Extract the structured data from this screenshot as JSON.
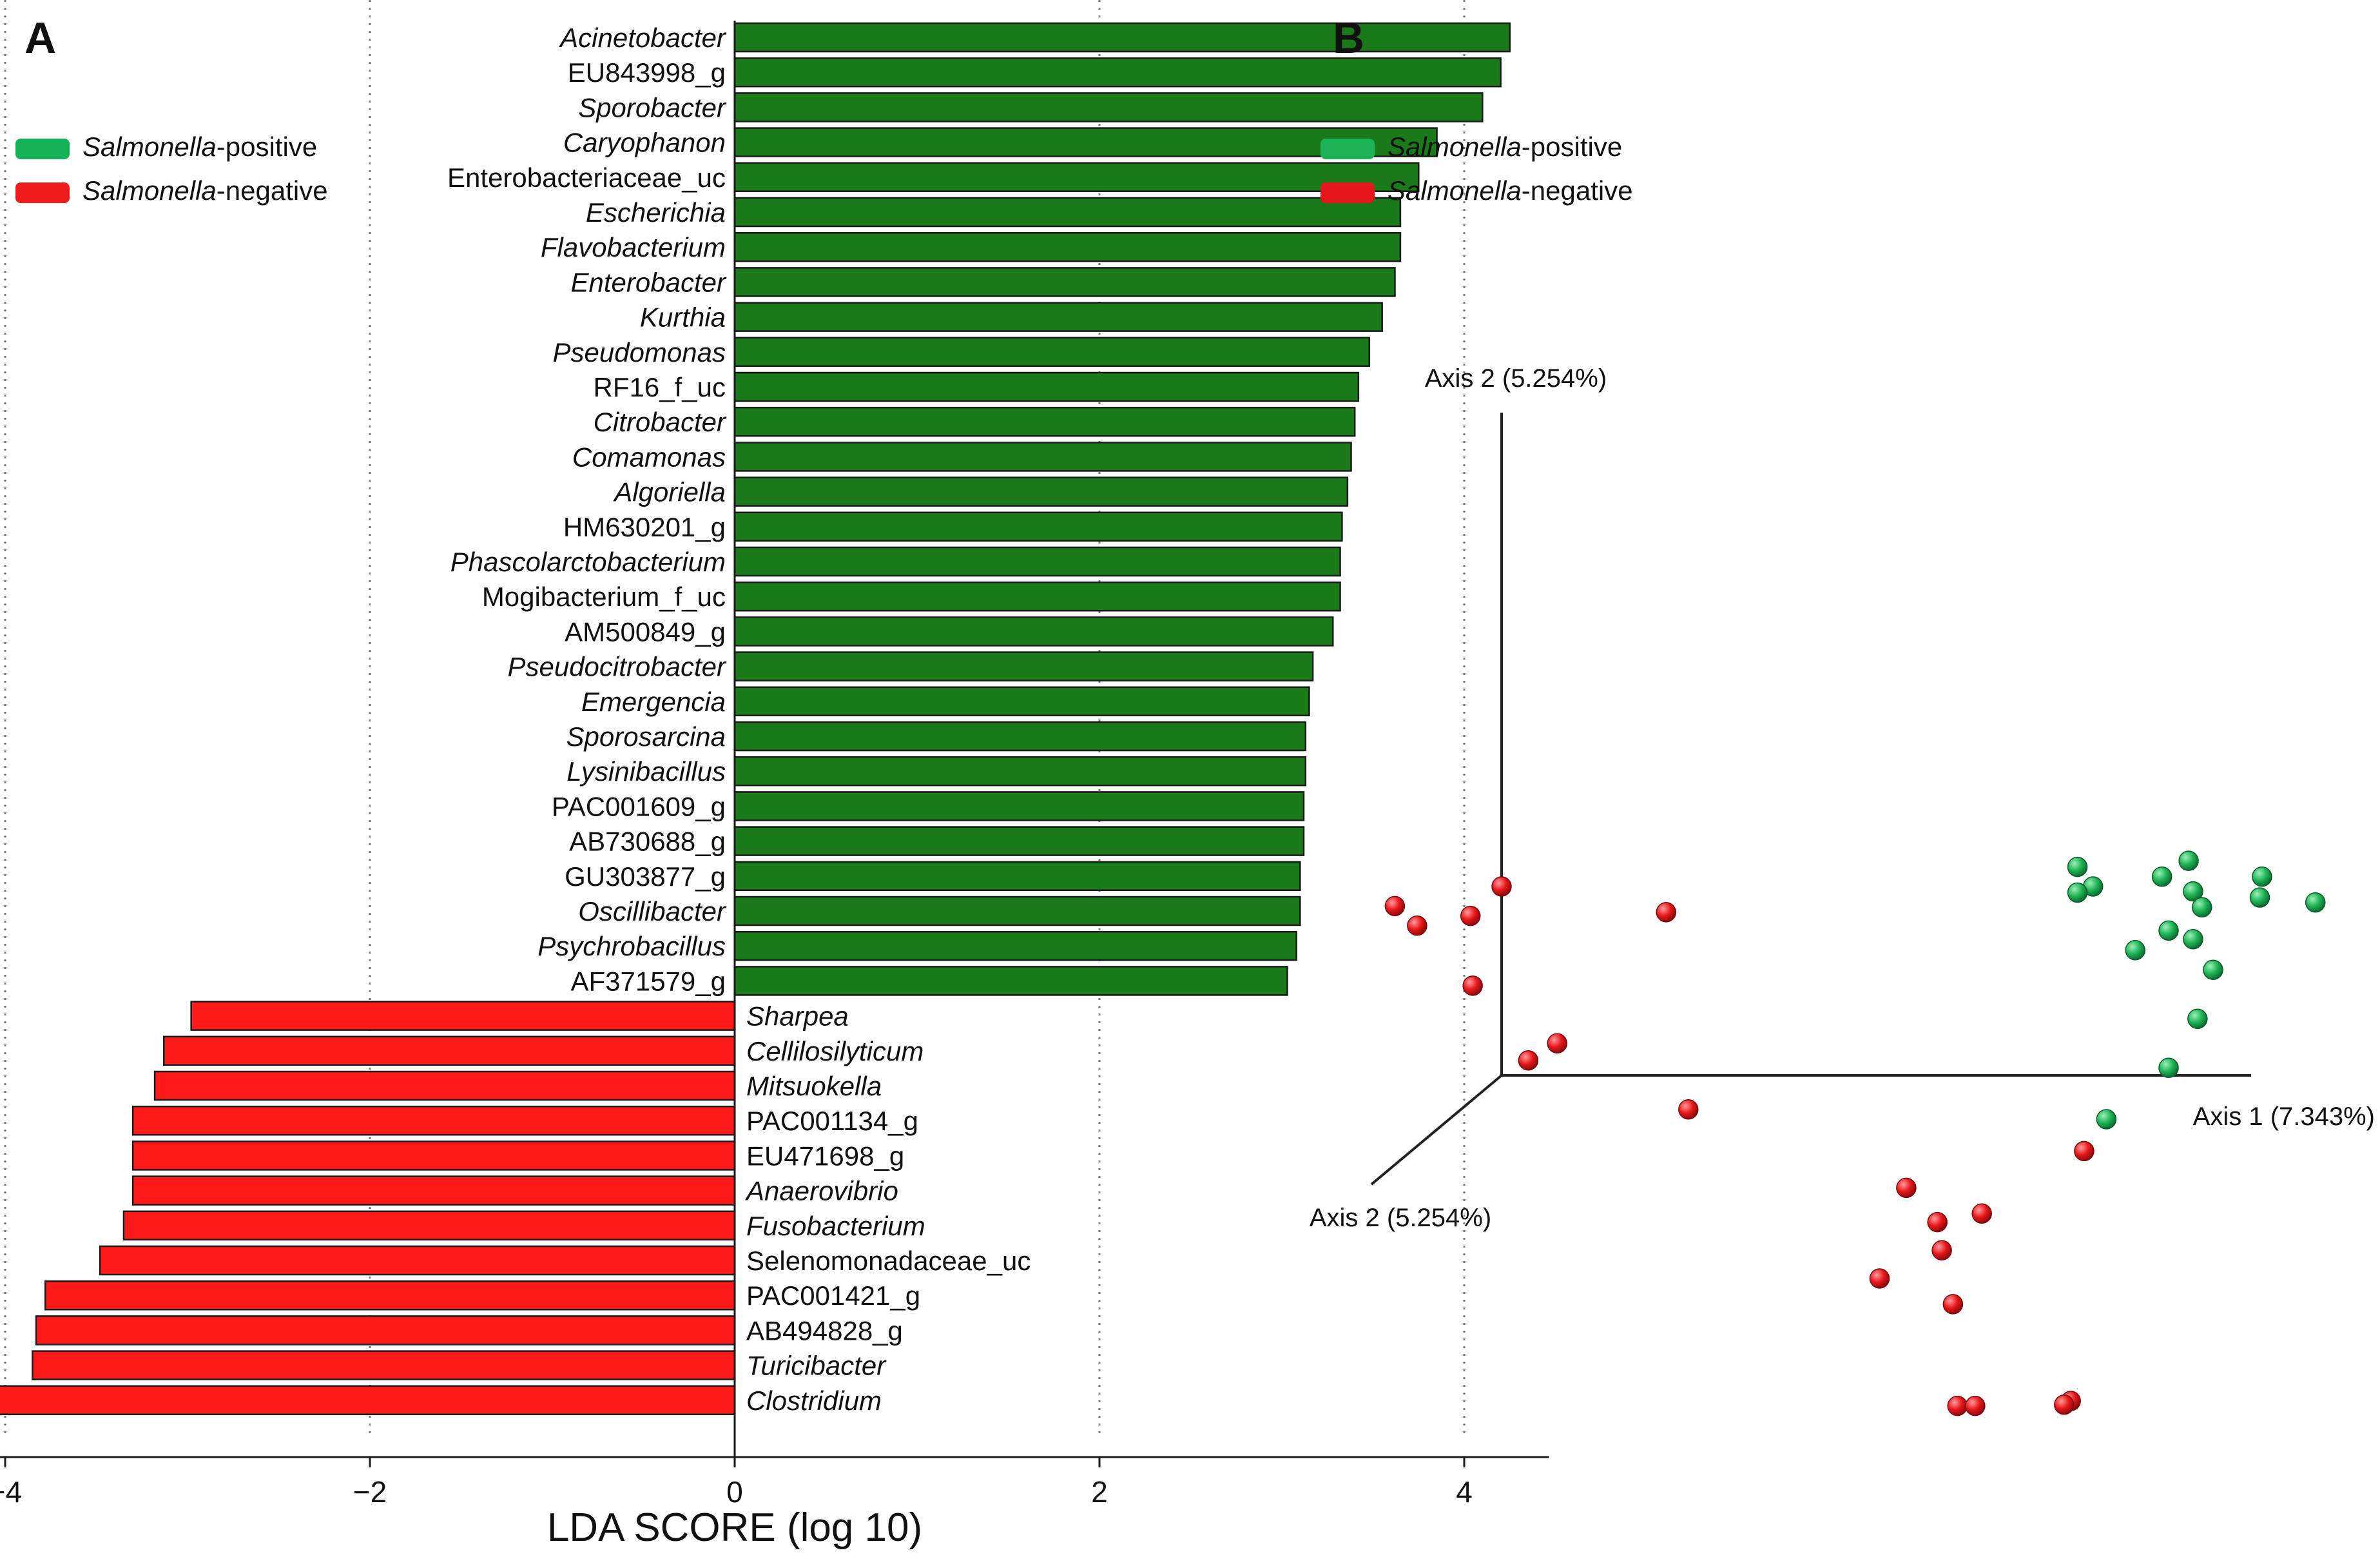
{
  "panel_a": {
    "panel_label": "A",
    "legend": {
      "positive_prefix": "Salmonella",
      "positive_suffix": "-positive",
      "negative_prefix": "Salmonella",
      "negative_suffix": "-negative"
    },
    "colors": {
      "positive": "#1a7a1a",
      "negative": "#ff1a1a",
      "legend_positive": "#14b257",
      "legend_negative": "#ee1c1c"
    }
  },
  "panel_b": {
    "panel_label": "B",
    "legend": {
      "positive_prefix": "Salmonella",
      "positive_suffix": "-positive",
      "negative_prefix": "Salmonella",
      "negative_suffix": "-negative"
    },
    "axis_labels": {
      "axis2_top": "Axis 2 (5.254%)",
      "axis1_right": "Axis 1 (7.343%)",
      "axis2_depth": "Axis 2 (5.254%)"
    },
    "colors": {
      "positive": "#1db356",
      "negative": "#e6161a"
    }
  },
  "chart_data": [
    {
      "type": "bar",
      "orientation": "horizontal",
      "xlabel": "LDA SCORE (log 10)",
      "xlim": [
        -4.5,
        4.5
      ],
      "xticks": [
        -4,
        -2,
        0,
        2,
        4
      ],
      "xtick_labels": [
        "−4",
        "−2",
        "0",
        "2",
        "4"
      ],
      "grid": "vertical dotted lines at -4, -2, 2, 4",
      "legend": "top-left",
      "bars": [
        {
          "label": "Acinetobacter",
          "value": 4.25,
          "group": "positive",
          "italic": true
        },
        {
          "label": "EU843998_g",
          "value": 4.2,
          "group": "positive",
          "italic": false
        },
        {
          "label": "Sporobacter",
          "value": 4.1,
          "group": "positive",
          "italic": true
        },
        {
          "label": "Caryophanon",
          "value": 3.85,
          "group": "positive",
          "italic": true
        },
        {
          "label": "Enterobacteriaceae_uc",
          "value": 3.75,
          "group": "positive",
          "italic": false
        },
        {
          "label": "Escherichia",
          "value": 3.65,
          "group": "positive",
          "italic": true
        },
        {
          "label": "Flavobacterium",
          "value": 3.65,
          "group": "positive",
          "italic": true
        },
        {
          "label": "Enterobacter",
          "value": 3.62,
          "group": "positive",
          "italic": true
        },
        {
          "label": "Kurthia",
          "value": 3.55,
          "group": "positive",
          "italic": true
        },
        {
          "label": "Pseudomonas",
          "value": 3.48,
          "group": "positive",
          "italic": true
        },
        {
          "label": "RF16_f_uc",
          "value": 3.42,
          "group": "positive",
          "italic": false
        },
        {
          "label": "Citrobacter",
          "value": 3.4,
          "group": "positive",
          "italic": true
        },
        {
          "label": "Comamonas",
          "value": 3.38,
          "group": "positive",
          "italic": true
        },
        {
          "label": "Algoriella",
          "value": 3.36,
          "group": "positive",
          "italic": true
        },
        {
          "label": "HM630201_g",
          "value": 3.33,
          "group": "positive",
          "italic": false
        },
        {
          "label": "Phascolarctobacterium",
          "value": 3.32,
          "group": "positive",
          "italic": true
        },
        {
          "label": "Mogibacterium_f_uc",
          "value": 3.32,
          "group": "positive",
          "italic": false
        },
        {
          "label": "AM500849_g",
          "value": 3.28,
          "group": "positive",
          "italic": false
        },
        {
          "label": "Pseudocitrobacter",
          "value": 3.17,
          "group": "positive",
          "italic": true
        },
        {
          "label": "Emergencia",
          "value": 3.15,
          "group": "positive",
          "italic": true
        },
        {
          "label": "Sporosarcina",
          "value": 3.13,
          "group": "positive",
          "italic": true
        },
        {
          "label": "Lysinibacillus",
          "value": 3.13,
          "group": "positive",
          "italic": true
        },
        {
          "label": "PAC001609_g",
          "value": 3.12,
          "group": "positive",
          "italic": false
        },
        {
          "label": "AB730688_g",
          "value": 3.12,
          "group": "positive",
          "italic": false
        },
        {
          "label": "GU303877_g",
          "value": 3.1,
          "group": "positive",
          "italic": false
        },
        {
          "label": "Oscillibacter",
          "value": 3.1,
          "group": "positive",
          "italic": true
        },
        {
          "label": "Psychrobacillus",
          "value": 3.08,
          "group": "positive",
          "italic": true
        },
        {
          "label": "AF371579_g",
          "value": 3.03,
          "group": "positive",
          "italic": false
        },
        {
          "label": "Sharpea",
          "value": -2.98,
          "group": "negative",
          "italic": true
        },
        {
          "label": "Cellilosilyticum",
          "value": -3.13,
          "group": "negative",
          "italic": true
        },
        {
          "label": "Mitsuokella",
          "value": -3.18,
          "group": "negative",
          "italic": true
        },
        {
          "label": "PAC001134_g",
          "value": -3.3,
          "group": "negative",
          "italic": false
        },
        {
          "label": "EU471698_g",
          "value": -3.3,
          "group": "negative",
          "italic": false
        },
        {
          "label": "Anaerovibrio",
          "value": -3.3,
          "group": "negative",
          "italic": true
        },
        {
          "label": "Fusobacterium",
          "value": -3.35,
          "group": "negative",
          "italic": true
        },
        {
          "label": "Selenomonadaceae_uc",
          "value": -3.48,
          "group": "negative",
          "italic": false
        },
        {
          "label": "PAC001421_g",
          "value": -3.78,
          "group": "negative",
          "italic": false
        },
        {
          "label": "AB494828_g",
          "value": -3.83,
          "group": "negative",
          "italic": false
        },
        {
          "label": "Turicibacter",
          "value": -3.85,
          "group": "negative",
          "italic": true
        },
        {
          "label": "Clostridium",
          "value": -4.42,
          "group": "negative",
          "italic": true
        }
      ]
    },
    {
      "type": "scatter",
      "projection": "3d",
      "legend": "top-left",
      "grid": false,
      "series": [
        {
          "name": "Salmonella-positive",
          "group": "positive",
          "points": [
            [
              3.09,
              0.71
            ],
            [
              3.42,
              0.58
            ],
            [
              3.11,
              0.46
            ],
            [
              3.41,
              0.41
            ],
            [
              3.15,
              0.33
            ],
            [
              3.66,
              0.37
            ],
            [
              3.11,
              0.07
            ],
            [
              2.97,
              0.58
            ],
            [
              2.66,
              0.5
            ],
            [
              2.59,
              0.45
            ],
            [
              2.59,
              0.66
            ],
            [
              3.0,
              0.14
            ],
            [
              2.85,
              -0.02
            ],
            [
              3.2,
              -0.18
            ],
            [
              3.13,
              -0.58
            ],
            [
              3.0,
              -0.98
            ],
            [
              2.72,
              -1.4
            ]
          ]
        },
        {
          "name": "Salmonella-negative",
          "group": "negative",
          "points": [
            [
              0.0,
              0.5
            ],
            [
              -0.48,
              0.34
            ],
            [
              -0.38,
              0.18
            ],
            [
              -0.14,
              0.26
            ],
            [
              0.74,
              0.29
            ],
            [
              -0.13,
              -0.31
            ],
            [
              0.25,
              -0.78
            ],
            [
              0.12,
              -0.92
            ],
            [
              0.84,
              -1.32
            ],
            [
              2.62,
              -1.66
            ],
            [
              1.82,
              -1.96
            ],
            [
              2.16,
              -2.17
            ],
            [
              1.96,
              -2.24
            ],
            [
              1.98,
              -2.47
            ],
            [
              1.7,
              -2.7
            ],
            [
              2.03,
              -2.91
            ],
            [
              2.05,
              -3.74
            ],
            [
              2.13,
              -3.74
            ],
            [
              2.56,
              -3.7
            ],
            [
              2.53,
              -3.73
            ]
          ]
        }
      ]
    }
  ]
}
